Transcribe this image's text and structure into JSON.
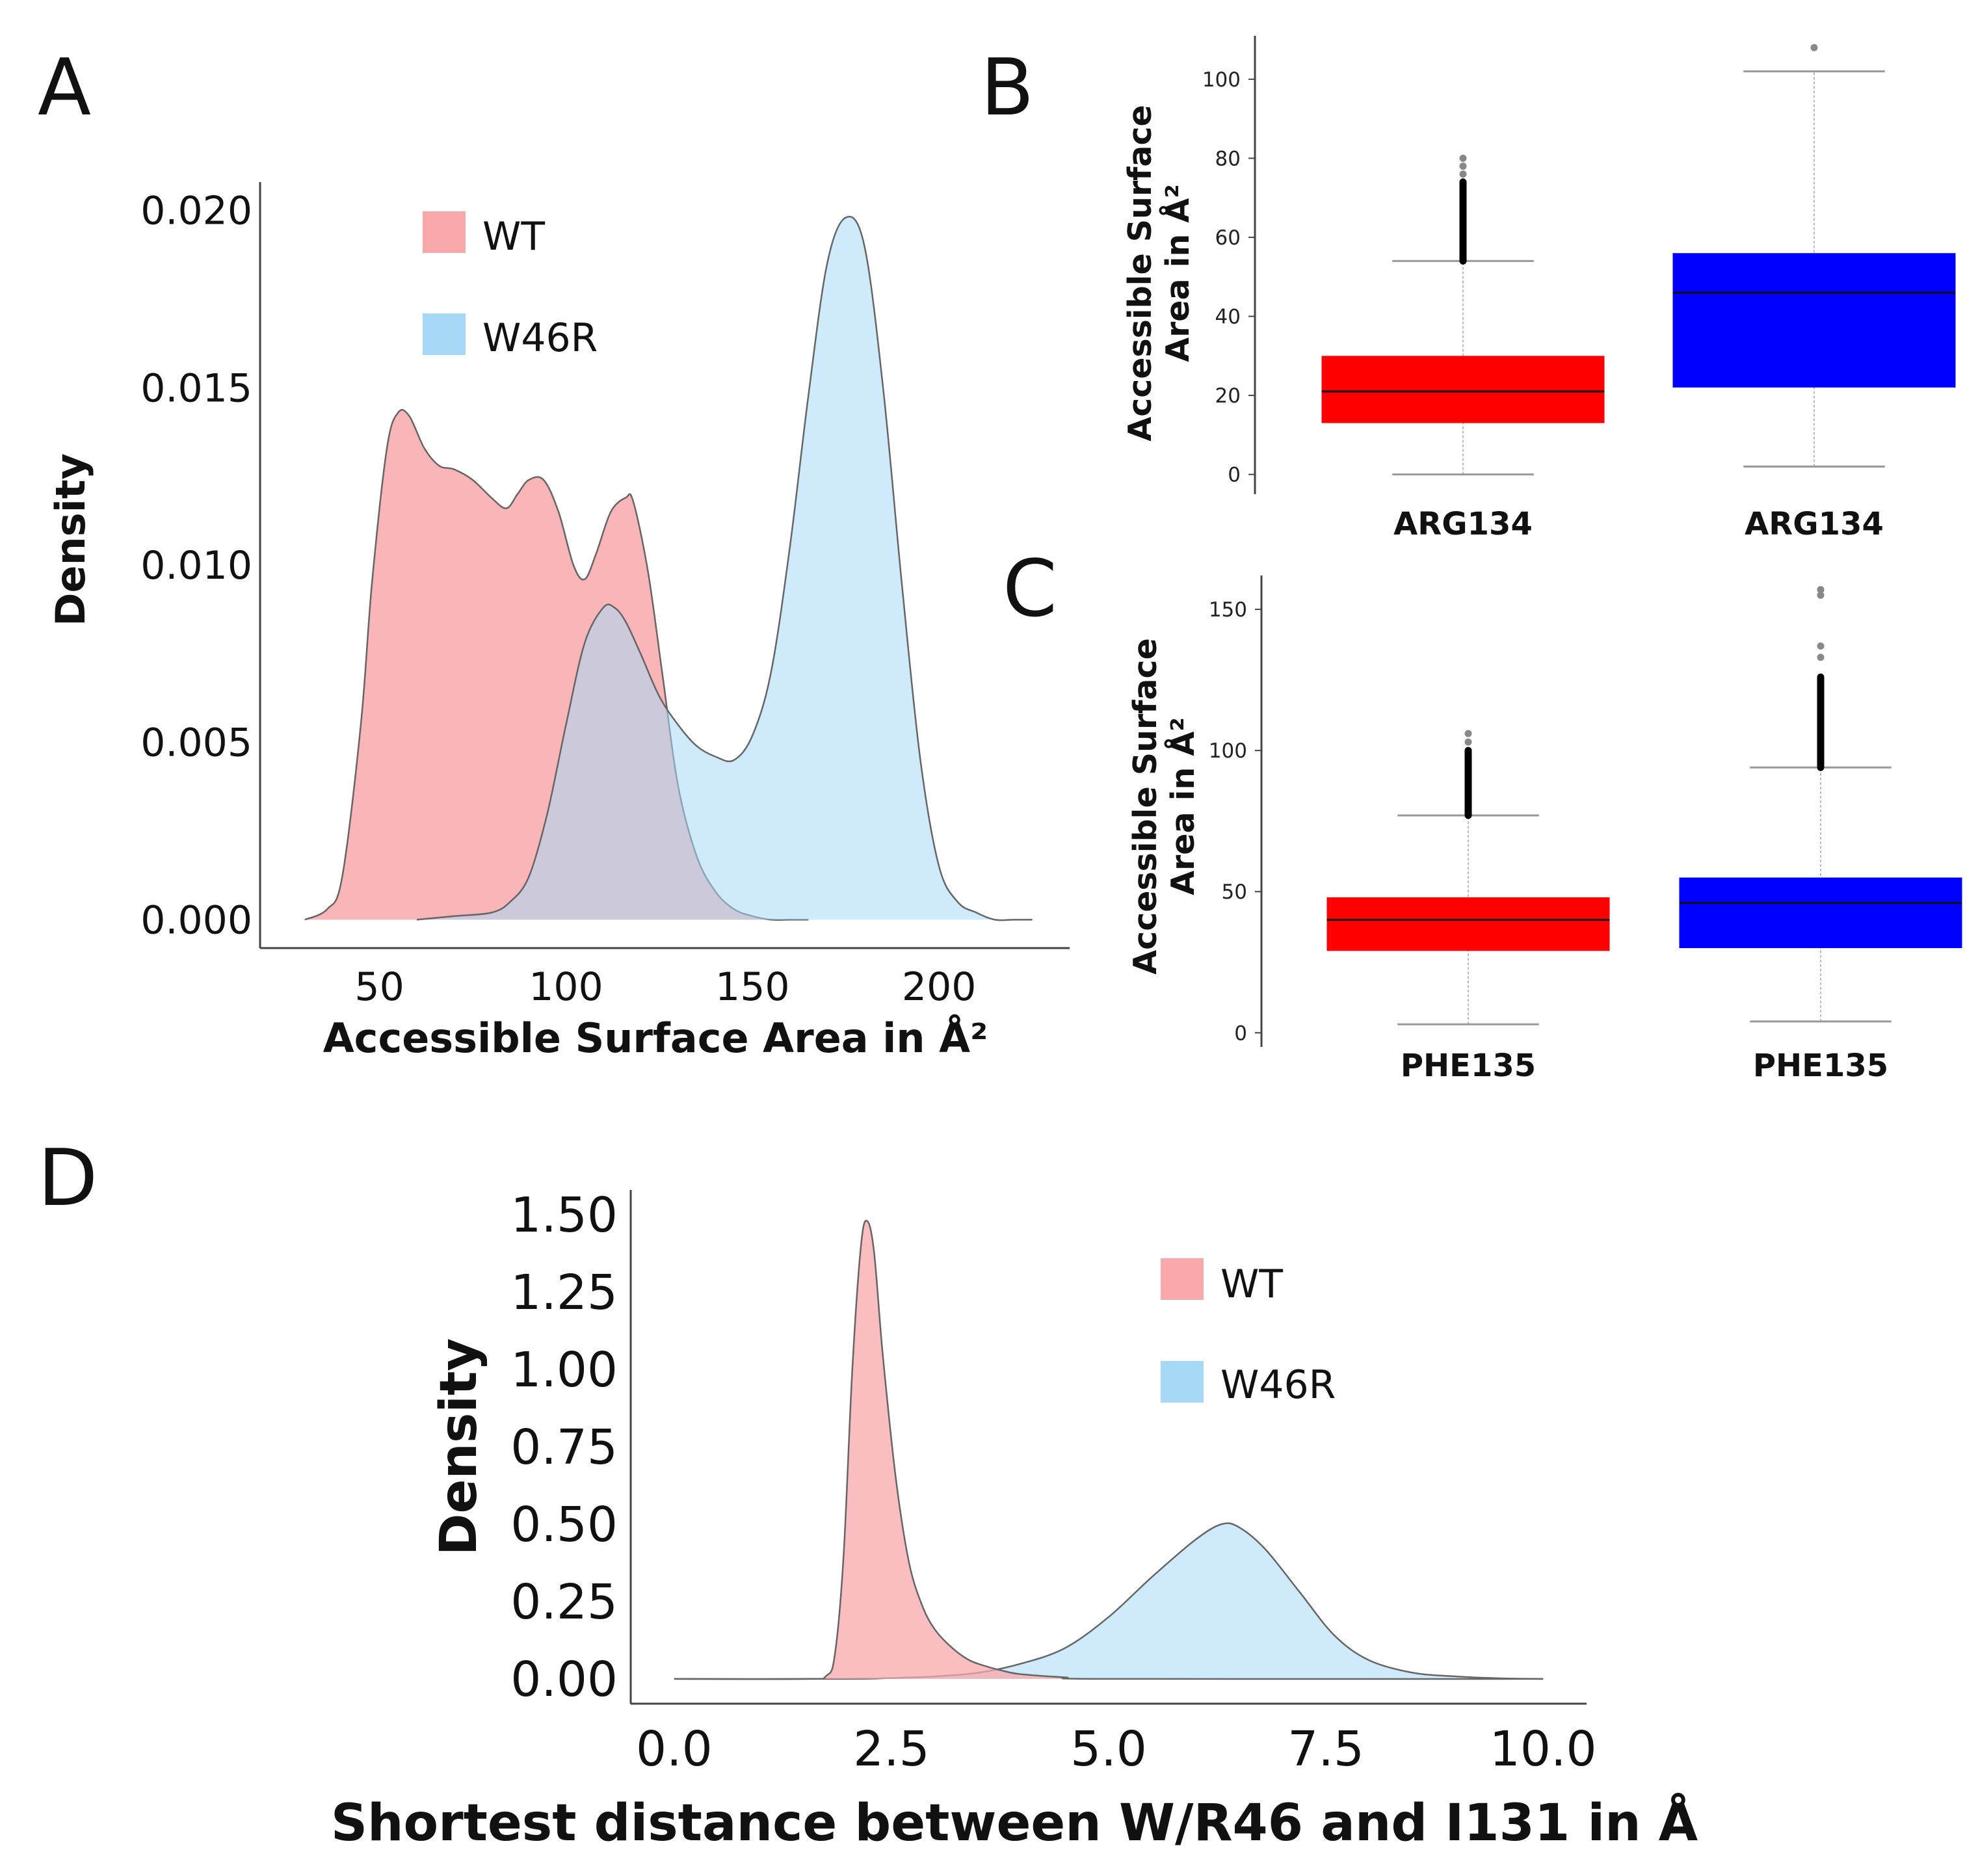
{
  "panel_labels": [
    "A",
    "B",
    "C",
    "D"
  ],
  "colors": {
    "wt_density_fill": "#f8a8ab",
    "w46r_density_fill": "#a8d8f8",
    "wt_box": "#ff0000",
    "w46r_box": "#0000ff",
    "axis": "#444444",
    "curve_edge": "#666666"
  },
  "chart_data": [
    {
      "panel": "A",
      "type": "area",
      "title": "",
      "xlabel": "Accessible Surface Area in Å²",
      "ylabel": "Density",
      "xlim": [
        18,
        235
      ],
      "ylim": [
        -0.0008,
        0.0208
      ],
      "xticks": [
        50,
        100,
        150,
        200
      ],
      "xtick_labels": [
        "50",
        "100",
        "150",
        "200"
      ],
      "yticks": [
        0,
        0.005,
        0.01,
        0.015,
        0.02
      ],
      "ytick_labels": [
        "0.000",
        "0.005",
        "0.010",
        "0.015",
        "0.020"
      ],
      "legend": [
        "WT",
        "W46R"
      ],
      "legend_position": "top-center",
      "series": [
        {
          "name": "WT",
          "x": [
            30,
            36,
            40,
            45,
            48,
            52,
            55,
            58,
            62,
            66,
            70,
            75,
            80,
            84,
            87,
            90,
            94,
            98,
            102,
            105,
            108,
            112,
            116,
            118,
            122,
            126,
            130,
            135,
            140,
            145,
            150,
            155,
            160,
            165
          ],
          "y": [
            0,
            0.0003,
            0.0012,
            0.0055,
            0.0095,
            0.0133,
            0.0143,
            0.0142,
            0.0133,
            0.0128,
            0.0127,
            0.0124,
            0.0119,
            0.0116,
            0.012,
            0.0124,
            0.0124,
            0.0115,
            0.01,
            0.0096,
            0.0103,
            0.0115,
            0.0119,
            0.0118,
            0.0098,
            0.0068,
            0.0038,
            0.0018,
            0.0008,
            0.0003,
            0.0001,
            0,
            0,
            0
          ]
        },
        {
          "name": "W46R",
          "x": [
            60,
            70,
            80,
            85,
            90,
            95,
            100,
            105,
            110,
            113,
            116,
            120,
            125,
            130,
            135,
            140,
            145,
            150,
            155,
            160,
            165,
            170,
            175,
            180,
            185,
            190,
            195,
            200,
            205,
            210,
            215,
            220,
            225
          ],
          "y": [
            0,
            0.0001,
            0.0002,
            0.0005,
            0.0012,
            0.003,
            0.0055,
            0.0078,
            0.0088,
            0.0088,
            0.0084,
            0.0075,
            0.0063,
            0.0055,
            0.0049,
            0.0046,
            0.0045,
            0.0052,
            0.007,
            0.0105,
            0.0148,
            0.0185,
            0.0198,
            0.019,
            0.015,
            0.0095,
            0.0045,
            0.0015,
            0.0005,
            0.0002,
            0,
            0,
            0
          ]
        }
      ]
    },
    {
      "panel": "B",
      "type": "box",
      "ylabel": "Accessible Surface Area in Å²",
      "ylabel_lines": [
        "Accessible Surface",
        "Area in Å²"
      ],
      "ylim": [
        -5,
        111
      ],
      "yticks": [
        0,
        20,
        40,
        60,
        80,
        100
      ],
      "ytick_labels": [
        "0",
        "20",
        "40",
        "60",
        "80",
        "100"
      ],
      "categories": [
        "ARG134",
        "ARG134"
      ],
      "series": [
        {
          "name": "WT",
          "whisker_low": 0,
          "q1": 13,
          "median": 21,
          "q3": 30,
          "whisker_high": 54,
          "outliers_from": 54,
          "outliers_to": 74,
          "sparse_outliers": [
            76,
            78,
            80
          ]
        },
        {
          "name": "W46R",
          "whisker_low": 2,
          "q1": 22,
          "median": 46,
          "q3": 56,
          "whisker_high": 102,
          "sparse_outliers": [
            108
          ]
        }
      ]
    },
    {
      "panel": "C",
      "type": "box",
      "ylabel": "Accessible Surface Area in Å²",
      "ylabel_lines": [
        "Accessible Surface",
        "Area in Å²"
      ],
      "ylim": [
        -5,
        162
      ],
      "yticks": [
        0,
        50,
        100,
        150
      ],
      "ytick_labels": [
        "0",
        "50",
        "100",
        "150"
      ],
      "categories": [
        "PHE135",
        "PHE135"
      ],
      "series": [
        {
          "name": "WT",
          "whisker_low": 3,
          "q1": 29,
          "median": 40,
          "q3": 48,
          "whisker_high": 77,
          "outliers_from": 77,
          "outliers_to": 100,
          "sparse_outliers": [
            103,
            106
          ]
        },
        {
          "name": "W46R",
          "whisker_low": 4,
          "q1": 30,
          "median": 46,
          "q3": 55,
          "whisker_high": 94,
          "outliers_from": 94,
          "outliers_to": 126,
          "sparse_outliers": [
            133,
            137,
            155,
            157
          ]
        }
      ]
    },
    {
      "panel": "D",
      "type": "area",
      "title": "",
      "xlabel": "Shortest distance between W/R46 and I131 in Å",
      "ylabel": "Density",
      "xlim": [
        -0.5,
        10.5
      ],
      "ylim": [
        -0.08,
        1.58
      ],
      "xticks": [
        0,
        2.5,
        5,
        7.5,
        10
      ],
      "xtick_labels": [
        "0.0",
        "2.5",
        "5.0",
        "7.5",
        "10.0"
      ],
      "yticks": [
        0,
        0.25,
        0.5,
        0.75,
        1.0,
        1.25,
        1.5
      ],
      "ytick_labels": [
        "0.00",
        "0.25",
        "0.50",
        "0.75",
        "1.00",
        "1.25",
        "1.50"
      ],
      "legend": [
        "WT",
        "W46R"
      ],
      "legend_position": "top-right",
      "series": [
        {
          "name": "WT",
          "x": [
            0,
            1.5,
            1.75,
            1.85,
            1.95,
            2.05,
            2.15,
            2.22,
            2.3,
            2.4,
            2.55,
            2.7,
            2.85,
            3.0,
            3.2,
            3.4,
            3.6,
            3.8,
            4.0,
            4.5,
            5.0,
            10.0
          ],
          "y": [
            0,
            0,
            0.01,
            0.08,
            0.4,
            1.0,
            1.4,
            1.48,
            1.38,
            1.05,
            0.65,
            0.38,
            0.24,
            0.16,
            0.1,
            0.06,
            0.04,
            0.025,
            0.015,
            0.005,
            0,
            0
          ]
        },
        {
          "name": "W46R",
          "x": [
            0,
            2.0,
            2.5,
            3.0,
            3.5,
            4.0,
            4.5,
            5.0,
            5.5,
            6.0,
            6.3,
            6.5,
            6.8,
            7.2,
            7.6,
            8.0,
            8.5,
            9.0,
            9.5,
            10.0
          ],
          "y": [
            0,
            0,
            0.003,
            0.008,
            0.02,
            0.05,
            0.1,
            0.2,
            0.33,
            0.45,
            0.5,
            0.49,
            0.42,
            0.28,
            0.14,
            0.06,
            0.02,
            0.008,
            0.002,
            0
          ]
        }
      ]
    }
  ]
}
